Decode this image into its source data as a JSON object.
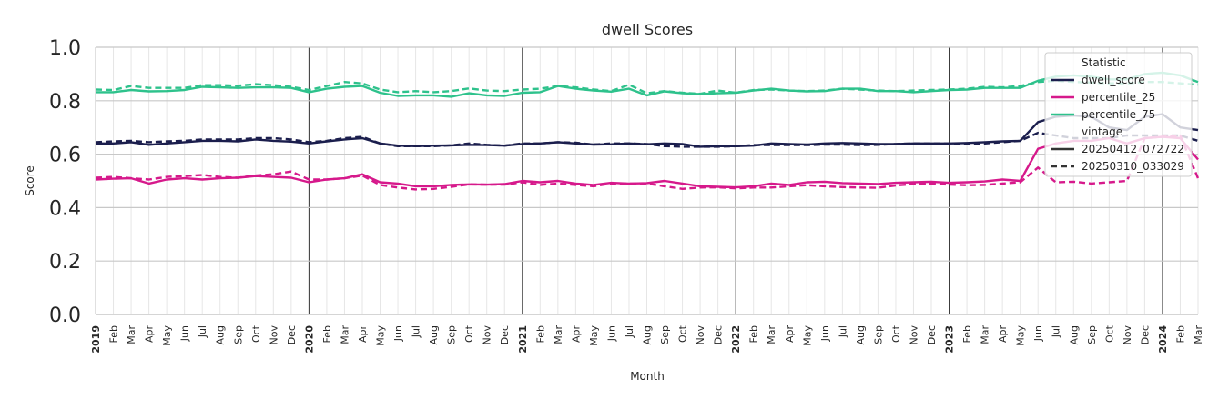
{
  "chart_data": {
    "type": "line",
    "title": "dwell Scores",
    "xlabel": "Month",
    "ylabel": "Score",
    "ylim": [
      0,
      1
    ],
    "yticks": [
      "0.0",
      "0.2",
      "0.4",
      "0.6",
      "0.8",
      "1.0"
    ],
    "x_start": "2019-01",
    "n_months": 63,
    "month_labels": [
      "Jan",
      "Feb",
      "Mar",
      "Apr",
      "May",
      "Jun",
      "Jul",
      "Aug",
      "Sep",
      "Oct",
      "Nov",
      "Dec"
    ],
    "legend": {
      "position": "top-right",
      "statistic_header": "Statistic",
      "vintage_header": "vintage",
      "statistics": [
        {
          "key": "dwell_score",
          "label": "dwell_score",
          "color": "#1b1e4d"
        },
        {
          "key": "percentile_25",
          "label": "percentile_25",
          "color": "#d6198b"
        },
        {
          "key": "percentile_75",
          "label": "percentile_75",
          "color": "#2ec28c"
        }
      ],
      "vintages": [
        {
          "label": "20250412_072722",
          "style": "solid"
        },
        {
          "label": "20250310_033029",
          "style": "dashed"
        }
      ]
    },
    "series": [
      {
        "name": "dwell_score",
        "vintage": "20250412_072722",
        "values": [
          0.64,
          0.64,
          0.645,
          0.635,
          0.64,
          0.645,
          0.65,
          0.65,
          0.648,
          0.655,
          0.65,
          0.647,
          0.64,
          0.648,
          0.655,
          0.66,
          0.64,
          0.632,
          0.63,
          0.632,
          0.633,
          0.635,
          0.634,
          0.632,
          0.638,
          0.64,
          0.645,
          0.64,
          0.636,
          0.637,
          0.64,
          0.637,
          0.64,
          0.638,
          0.628,
          0.63,
          0.63,
          0.632,
          0.64,
          0.638,
          0.636,
          0.64,
          0.642,
          0.64,
          0.638,
          0.638,
          0.64,
          0.64,
          0.64,
          0.642,
          0.645,
          0.648,
          0.65,
          0.72,
          0.74,
          0.745,
          0.74,
          0.7,
          0.69,
          0.74,
          0.75,
          0.7,
          0.69
        ]
      },
      {
        "name": "dwell_score",
        "vintage": "20250310_033029",
        "values": [
          0.645,
          0.648,
          0.65,
          0.645,
          0.648,
          0.65,
          0.655,
          0.655,
          0.655,
          0.66,
          0.66,
          0.655,
          0.645,
          0.65,
          0.66,
          0.665,
          0.64,
          0.63,
          0.63,
          0.63,
          0.633,
          0.64,
          0.635,
          0.632,
          0.64,
          0.64,
          0.645,
          0.643,
          0.636,
          0.64,
          0.64,
          0.638,
          0.63,
          0.628,
          0.628,
          0.628,
          0.63,
          0.634,
          0.634,
          0.634,
          0.634,
          0.636,
          0.636,
          0.634,
          0.635,
          0.638,
          0.64,
          0.64,
          0.64,
          0.64,
          0.64,
          0.645,
          0.65,
          0.68,
          0.67,
          0.66,
          0.66,
          0.66,
          0.67,
          0.67,
          0.67,
          0.67,
          0.65
        ]
      },
      {
        "name": "percentile_25",
        "vintage": "20250412_072722",
        "values": [
          0.505,
          0.508,
          0.51,
          0.49,
          0.505,
          0.51,
          0.505,
          0.51,
          0.512,
          0.518,
          0.515,
          0.512,
          0.495,
          0.505,
          0.51,
          0.525,
          0.495,
          0.49,
          0.48,
          0.48,
          0.485,
          0.487,
          0.486,
          0.488,
          0.5,
          0.495,
          0.5,
          0.49,
          0.485,
          0.493,
          0.49,
          0.492,
          0.5,
          0.49,
          0.48,
          0.478,
          0.476,
          0.48,
          0.49,
          0.485,
          0.495,
          0.497,
          0.492,
          0.49,
          0.488,
          0.493,
          0.495,
          0.497,
          0.493,
          0.495,
          0.498,
          0.505,
          0.5,
          0.62,
          0.64,
          0.65,
          0.65,
          0.66,
          0.64,
          0.66,
          0.665,
          0.66,
          0.58
        ]
      },
      {
        "name": "percentile_25",
        "vintage": "20250310_033029",
        "values": [
          0.512,
          0.515,
          0.51,
          0.505,
          0.515,
          0.518,
          0.522,
          0.515,
          0.512,
          0.52,
          0.525,
          0.535,
          0.505,
          0.505,
          0.51,
          0.52,
          0.485,
          0.475,
          0.468,
          0.47,
          0.478,
          0.487,
          0.486,
          0.486,
          0.495,
          0.485,
          0.49,
          0.485,
          0.48,
          0.49,
          0.49,
          0.49,
          0.48,
          0.47,
          0.475,
          0.476,
          0.472,
          0.475,
          0.475,
          0.48,
          0.484,
          0.48,
          0.477,
          0.475,
          0.474,
          0.483,
          0.488,
          0.49,
          0.486,
          0.484,
          0.485,
          0.49,
          0.495,
          0.55,
          0.495,
          0.497,
          0.49,
          0.495,
          0.5,
          0.66,
          0.665,
          0.67,
          0.51
        ]
      },
      {
        "name": "percentile_75",
        "vintage": "20250412_072722",
        "values": [
          0.832,
          0.832,
          0.84,
          0.835,
          0.836,
          0.84,
          0.852,
          0.85,
          0.848,
          0.85,
          0.85,
          0.848,
          0.832,
          0.845,
          0.852,
          0.855,
          0.83,
          0.818,
          0.82,
          0.82,
          0.815,
          0.828,
          0.82,
          0.818,
          0.83,
          0.832,
          0.855,
          0.845,
          0.838,
          0.834,
          0.845,
          0.82,
          0.835,
          0.828,
          0.825,
          0.828,
          0.83,
          0.838,
          0.845,
          0.838,
          0.835,
          0.836,
          0.845,
          0.845,
          0.836,
          0.836,
          0.832,
          0.836,
          0.84,
          0.842,
          0.848,
          0.848,
          0.848,
          0.875,
          0.89,
          0.895,
          0.89,
          0.88,
          0.88,
          0.9,
          0.905,
          0.895,
          0.87
        ]
      },
      {
        "name": "percentile_75",
        "vintage": "20250310_033029",
        "values": [
          0.842,
          0.84,
          0.855,
          0.848,
          0.848,
          0.848,
          0.858,
          0.858,
          0.856,
          0.862,
          0.858,
          0.852,
          0.84,
          0.855,
          0.87,
          0.865,
          0.842,
          0.832,
          0.836,
          0.832,
          0.836,
          0.846,
          0.838,
          0.836,
          0.842,
          0.845,
          0.855,
          0.85,
          0.842,
          0.836,
          0.86,
          0.828,
          0.836,
          0.83,
          0.826,
          0.838,
          0.83,
          0.84,
          0.842,
          0.838,
          0.836,
          0.838,
          0.845,
          0.842,
          0.838,
          0.836,
          0.838,
          0.84,
          0.842,
          0.845,
          0.852,
          0.85,
          0.855,
          0.87,
          0.875,
          0.87,
          0.868,
          0.865,
          0.865,
          0.87,
          0.87,
          0.865,
          0.86
        ]
      }
    ]
  }
}
